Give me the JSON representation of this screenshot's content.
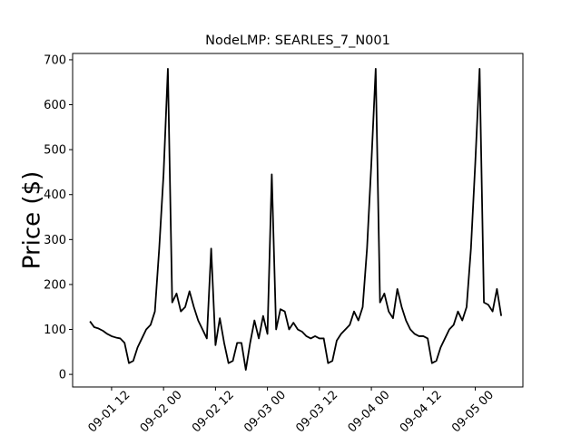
{
  "chart_data": {
    "type": "line",
    "title": "NodeLMP: SEARLES_7_N001",
    "y_label": "Price ($)",
    "x": [
      "09-01 07",
      "09-01 08",
      "09-01 09",
      "09-01 10",
      "09-01 11",
      "09-01 12",
      "09-01 13",
      "09-01 14",
      "09-01 15",
      "09-01 16",
      "09-01 17",
      "09-01 18",
      "09-01 19",
      "09-01 20",
      "09-01 21",
      "09-01 22",
      "09-01 23",
      "09-02 00",
      "09-02 01",
      "09-02 02",
      "09-02 03",
      "09-02 04",
      "09-02 05",
      "09-02 06",
      "09-02 07",
      "09-02 08",
      "09-02 09",
      "09-02 10",
      "09-02 11",
      "09-02 12",
      "09-02 13",
      "09-02 14",
      "09-02 15",
      "09-02 16",
      "09-02 17",
      "09-02 18",
      "09-02 19",
      "09-02 20",
      "09-02 21",
      "09-02 22",
      "09-02 23",
      "09-03 00",
      "09-03 01",
      "09-03 02",
      "09-03 03",
      "09-03 04",
      "09-03 05",
      "09-03 06",
      "09-03 07",
      "09-03 08",
      "09-03 09",
      "09-03 10",
      "09-03 11",
      "09-03 12",
      "09-03 13",
      "09-03 14",
      "09-03 15",
      "09-03 16",
      "09-03 17",
      "09-03 18",
      "09-03 19",
      "09-03 20",
      "09-03 21",
      "09-03 22",
      "09-03 23",
      "09-04 00",
      "09-04 01",
      "09-04 02",
      "09-04 03",
      "09-04 04",
      "09-04 05",
      "09-04 06",
      "09-04 07",
      "09-04 08",
      "09-04 09",
      "09-04 10",
      "09-04 11",
      "09-04 12",
      "09-04 13",
      "09-04 14",
      "09-04 15",
      "09-04 16",
      "09-04 17",
      "09-04 18",
      "09-04 19",
      "09-04 20",
      "09-04 21",
      "09-04 22",
      "09-04 23",
      "09-05 00",
      "09-05 01",
      "09-05 02",
      "09-05 03",
      "09-05 04",
      "09-05 05",
      "09-05 06"
    ],
    "series": [
      {
        "color": "#000000",
        "values": [
          118,
          105,
          102,
          97,
          90,
          85,
          82,
          80,
          70,
          25,
          30,
          60,
          80,
          100,
          110,
          140,
          280,
          445,
          680,
          160,
          180,
          140,
          150,
          185,
          150,
          120,
          100,
          80,
          280,
          65,
          125,
          70,
          25,
          30,
          70,
          70,
          10,
          70,
          120,
          80,
          130,
          90,
          445,
          100,
          145,
          140,
          100,
          115,
          100,
          95,
          85,
          80,
          85,
          80,
          80,
          25,
          30,
          75,
          90,
          100,
          110,
          140,
          120,
          150,
          280,
          470,
          680,
          160,
          180,
          140,
          125,
          190,
          150,
          120,
          100,
          90,
          85,
          85,
          80,
          25,
          30,
          60,
          80,
          100,
          110,
          140,
          120,
          150,
          280,
          470,
          680,
          160,
          155,
          140,
          190,
          130
        ]
      }
    ],
    "xlim": [
      "09-01 03",
      "09-05 11"
    ],
    "xticks": [
      "09-01 12",
      "09-02 00",
      "09-02 12",
      "09-03 00",
      "09-03 12",
      "09-04 00",
      "09-04 12",
      "09-05 00"
    ],
    "ylim": [
      -28,
      714
    ],
    "yticks": [
      0,
      100,
      200,
      300,
      400,
      500,
      600,
      700
    ]
  }
}
